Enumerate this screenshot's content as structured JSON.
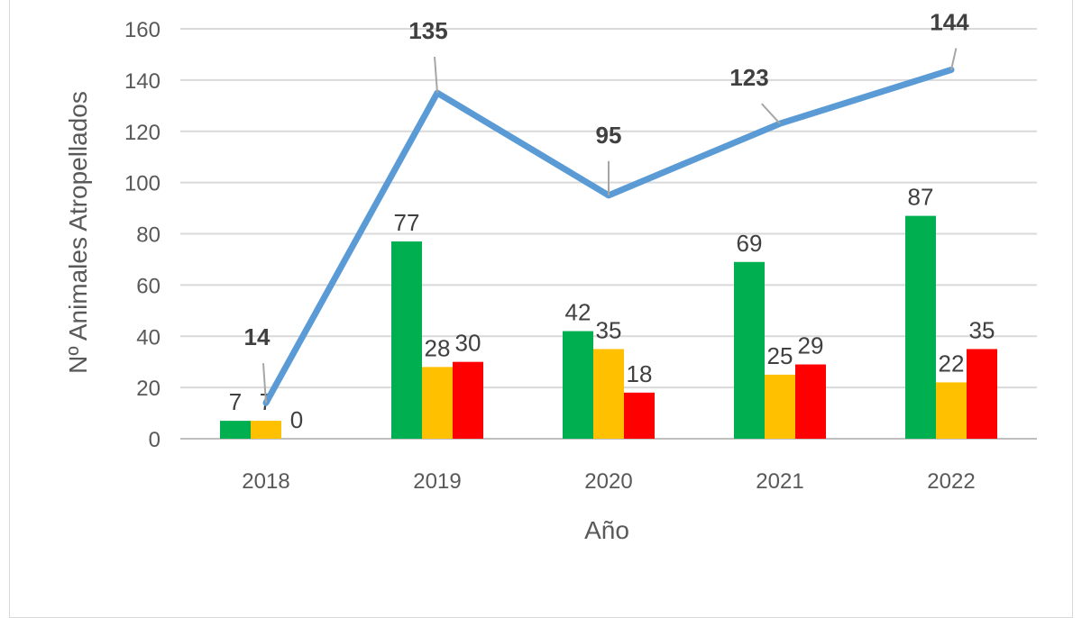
{
  "chart_data": {
    "type": "bar",
    "categories": [
      "2018",
      "2019",
      "2020",
      "2021",
      "2022"
    ],
    "xlabel": "Año",
    "ylabel": "Nº Animales Atropellados",
    "ylim": [
      0,
      160
    ],
    "yticks": [
      0,
      20,
      40,
      60,
      80,
      100,
      120,
      140,
      160
    ],
    "grid": true,
    "series": [
      {
        "type": "bar",
        "color": "#00b050",
        "values": [
          7,
          77,
          42,
          69,
          87
        ]
      },
      {
        "type": "bar",
        "color": "#ffc000",
        "values": [
          7,
          28,
          35,
          25,
          22
        ]
      },
      {
        "type": "bar",
        "color": "#ff0000",
        "values": [
          0,
          30,
          18,
          29,
          35
        ]
      },
      {
        "type": "line",
        "color": "#5b9bd5",
        "values": [
          14,
          135,
          95,
          123,
          144
        ]
      }
    ]
  }
}
